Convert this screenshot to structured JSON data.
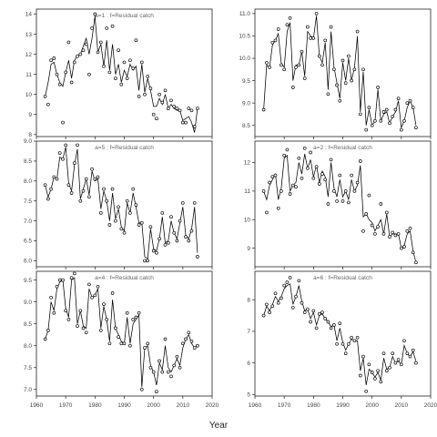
{
  "chart_data": {
    "type": "scatter",
    "shared_xlabel": "Year",
    "panels": [
      {
        "title": "a=1 : f=Residual catch",
        "xlim": [
          1960,
          2020
        ],
        "xticks": [
          1960,
          1970,
          1980,
          1990,
          2000,
          2010,
          2020
        ],
        "ylim": [
          7.9,
          14.25
        ],
        "yticks": [
          8,
          9,
          10,
          11,
          12,
          13,
          14
        ],
        "x": [
          1963,
          1964,
          1965,
          1966,
          1967,
          1968,
          1969,
          1970,
          1971,
          1972,
          1973,
          1974,
          1975,
          1976,
          1977,
          1978,
          1979,
          1980,
          1981,
          1982,
          1983,
          1984,
          1985,
          1986,
          1987,
          1988,
          1989,
          1990,
          1991,
          1992,
          1993,
          1994,
          1995,
          1996,
          1997,
          1998,
          1999,
          2000,
          2001,
          2002,
          2003,
          2004,
          2005,
          2006,
          2007,
          2008,
          2009,
          2010,
          2011,
          2012,
          2013,
          2014,
          2015
        ],
        "observed": [
          9.9,
          9.5,
          11.7,
          11.8,
          11.0,
          10.5,
          8.6,
          11.1,
          12.6,
          10.6,
          11.6,
          11.9,
          12.0,
          12.2,
          12.5,
          11.0,
          13.3,
          14.0,
          12.1,
          12.6,
          11.4,
          13.3,
          11.1,
          13.4,
          10.8,
          12.2,
          10.5,
          11.6,
          10.8,
          11.7,
          11.3,
          12.7,
          9.9,
          11.6,
          10.0,
          10.9,
          10.3,
          9.0,
          8.8,
          10.0,
          9.6,
          10.2,
          9.3,
          9.7,
          9.4,
          9.3,
          9.2,
          8.6,
          8.6,
          9.3,
          9.2,
          8.4,
          9.3
        ],
        "fitted": [
          9.9,
          10.6,
          11.5,
          11.6,
          11.0,
          10.6,
          10.4,
          11.1,
          11.7,
          10.8,
          11.7,
          11.9,
          12.0,
          12.4,
          12.8,
          12.0,
          12.8,
          13.9,
          12.1,
          12.5,
          11.4,
          12.7,
          11.2,
          12.5,
          11.0,
          11.5,
          10.6,
          11.2,
          10.9,
          11.5,
          11.2,
          11.4,
          10.2,
          11.5,
          10.1,
          10.8,
          10.2,
          9.4,
          9.4,
          9.8,
          9.5,
          10.0,
          9.3,
          9.5,
          9.3,
          9.2,
          9.2,
          8.7,
          8.8,
          8.9,
          8.6,
          8.1,
          9.3
        ]
      },
      {
        "title": "a=2 : f=Residual catch",
        "xlim": [
          1960,
          2020
        ],
        "xticks": [
          1960,
          1970,
          1980,
          1990,
          2000,
          2010,
          2020
        ],
        "ylim": [
          8.35,
          12.75
        ],
        "yticks": [
          9,
          10,
          11,
          12
        ],
        "x": [
          1963,
          1964,
          1965,
          1966,
          1967,
          1968,
          1969,
          1970,
          1971,
          1972,
          1973,
          1974,
          1975,
          1976,
          1977,
          1978,
          1979,
          1980,
          1981,
          1982,
          1983,
          1984,
          1985,
          1986,
          1987,
          1988,
          1989,
          1990,
          1991,
          1992,
          1993,
          1994,
          1995,
          1996,
          1997,
          1998,
          1999,
          2000,
          2001,
          2002,
          2003,
          2004,
          2005,
          2006,
          2007,
          2008,
          2009,
          2010,
          2011,
          2012,
          2013,
          2014,
          2015
        ],
        "observed": [
          11.0,
          10.25,
          11.3,
          11.5,
          11.55,
          10.4,
          11.0,
          12.25,
          12.45,
          10.9,
          11.2,
          11.15,
          12.15,
          11.45,
          12.5,
          11.8,
          12.35,
          11.45,
          11.85,
          11.25,
          11.6,
          11.4,
          10.55,
          12.1,
          11.0,
          10.65,
          11.55,
          10.65,
          11.0,
          10.6,
          11.55,
          11.0,
          11.3,
          12.05,
          9.6,
          10.2,
          10.85,
          9.8,
          9.5,
          9.75,
          10.55,
          9.5,
          10.25,
          9.4,
          9.55,
          9.45,
          9.5,
          9.0,
          9.05,
          9.6,
          9.7,
          8.85,
          8.5
        ],
        "fitted": [
          11.0,
          10.7,
          11.2,
          11.4,
          11.6,
          10.7,
          11.1,
          12.15,
          12.25,
          11.0,
          11.2,
          11.3,
          12.0,
          11.6,
          12.3,
          11.8,
          12.1,
          11.5,
          11.9,
          11.3,
          11.7,
          11.5,
          10.8,
          12.0,
          11.1,
          10.8,
          11.4,
          10.8,
          11.0,
          10.7,
          11.4,
          11.0,
          11.2,
          11.9,
          10.1,
          10.2,
          10.0,
          9.9,
          9.6,
          9.8,
          10.0,
          9.5,
          10.2,
          9.4,
          9.5,
          9.5,
          9.5,
          9.0,
          9.1,
          9.5,
          9.6,
          8.9,
          8.5
        ]
      },
      {
        "title": "",
        "xlim": [
          1960,
          2020
        ],
        "xticks": [
          1960,
          1970,
          1980,
          1990,
          2000,
          2010,
          2020
        ],
        "ylim": [
          8.25,
          11.1
        ],
        "yticks": [
          8.5,
          9.0,
          9.5,
          10.0,
          10.5,
          11.0
        ],
        "x": [
          1963,
          1964,
          1965,
          1966,
          1967,
          1968,
          1969,
          1970,
          1971,
          1972,
          1973,
          1974,
          1975,
          1976,
          1977,
          1978,
          1979,
          1980,
          1981,
          1982,
          1983,
          1984,
          1985,
          1986,
          1987,
          1988,
          1989,
          1990,
          1991,
          1992,
          1993,
          1994,
          1995,
          1996,
          1997,
          1998,
          1999,
          2000,
          2001,
          2002,
          2003,
          2004,
          2005,
          2006,
          2007,
          2008,
          2009,
          2010,
          2011,
          2012,
          2013,
          2014,
          2015
        ],
        "observed": [
          8.85,
          9.9,
          9.8,
          10.35,
          10.4,
          10.65,
          9.85,
          9.75,
          10.75,
          10.9,
          9.35,
          9.8,
          9.85,
          10.15,
          9.55,
          10.7,
          10.45,
          10.45,
          11.0,
          10.05,
          9.85,
          10.4,
          9.2,
          10.7,
          9.75,
          9.4,
          9.05,
          9.95,
          9.45,
          10.05,
          9.5,
          9.75,
          10.6,
          8.75,
          9.75,
          8.4,
          8.9,
          8.5,
          8.6,
          9.35,
          8.6,
          8.8,
          8.85,
          8.55,
          8.7,
          8.85,
          9.1,
          8.4,
          8.6,
          9.0,
          9.05,
          8.9,
          8.45
        ],
        "fitted": [
          8.85,
          9.85,
          9.8,
          10.3,
          10.4,
          10.55,
          9.9,
          9.8,
          10.6,
          10.8,
          9.5,
          9.85,
          9.85,
          10.15,
          9.6,
          10.6,
          10.5,
          10.45,
          10.95,
          10.05,
          9.9,
          10.35,
          9.3,
          10.6,
          9.8,
          9.45,
          9.1,
          9.9,
          9.5,
          10.0,
          9.5,
          9.8,
          10.5,
          8.8,
          9.7,
          8.5,
          8.85,
          8.5,
          8.6,
          9.3,
          8.6,
          8.75,
          8.8,
          8.55,
          8.7,
          8.8,
          9.05,
          8.45,
          8.6,
          8.9,
          9.05,
          8.9,
          8.5
        ]
      },
      {
        "title": "a=4 : f=Residual catch",
        "xlim": [
          1960,
          2020
        ],
        "xticks": [
          1960,
          1970,
          1980,
          1990,
          2000,
          2010,
          2020
        ],
        "ylim": [
          6.85,
          9.7
        ],
        "yticks": [
          7.0,
          7.5,
          8.0,
          8.5,
          9.0,
          9.5
        ],
        "x": [
          1963,
          1964,
          1965,
          1966,
          1967,
          1968,
          1969,
          1970,
          1971,
          1972,
          1973,
          1974,
          1975,
          1976,
          1977,
          1978,
          1979,
          1980,
          1981,
          1982,
          1983,
          1984,
          1985,
          1986,
          1987,
          1988,
          1989,
          1990,
          1991,
          1992,
          1993,
          1994,
          1995,
          1996,
          1997,
          1998,
          1999,
          2000,
          2001,
          2002,
          2003,
          2004,
          2005,
          2006,
          2007,
          2008,
          2009,
          2010,
          2011,
          2012,
          2013,
          2014,
          2015
        ],
        "observed": [
          8.15,
          8.35,
          9.1,
          8.75,
          9.35,
          9.5,
          9.5,
          8.8,
          8.6,
          9.55,
          9.65,
          8.45,
          8.8,
          8.4,
          8.3,
          9.4,
          9.1,
          9.15,
          9.35,
          8.35,
          8.95,
          8.6,
          8.05,
          9.2,
          8.4,
          8.2,
          8.05,
          8.05,
          8.75,
          8.0,
          8.6,
          8.65,
          8.75,
          7.0,
          7.95,
          8.05,
          7.5,
          7.4,
          6.95,
          7.65,
          7.4,
          8.15,
          7.4,
          7.3,
          7.55,
          7.75,
          7.5,
          8.05,
          8.15,
          8.3,
          8.1,
          7.95,
          8.0
        ],
        "fitted": [
          8.15,
          8.35,
          9.0,
          8.8,
          9.3,
          9.45,
          9.5,
          8.85,
          8.65,
          9.5,
          9.55,
          8.5,
          8.8,
          8.45,
          8.4,
          9.3,
          9.1,
          9.15,
          9.3,
          8.4,
          8.9,
          8.6,
          8.1,
          9.05,
          8.4,
          8.25,
          8.1,
          8.05,
          8.65,
          8.05,
          8.5,
          8.6,
          8.7,
          7.05,
          7.95,
          8.0,
          7.55,
          7.4,
          7.1,
          7.6,
          7.45,
          8.0,
          7.5,
          7.4,
          7.55,
          7.7,
          7.55,
          7.95,
          8.15,
          8.25,
          8.05,
          7.95,
          8.0
        ]
      },
      {
        "title": "a=5 : f=Residual catch",
        "xlim": [
          1960,
          2020
        ],
        "xticks": [
          1960,
          1970,
          1980,
          1990,
          2000,
          2010,
          2020
        ],
        "ylim": [
          5.85,
          9.0
        ],
        "yticks": [
          6.0,
          6.5,
          7.0,
          7.5,
          8.0,
          8.5,
          9.0
        ],
        "x": [
          1963,
          1964,
          1965,
          1966,
          1967,
          1968,
          1969,
          1970,
          1971,
          1972,
          1973,
          1974,
          1975,
          1976,
          1977,
          1978,
          1979,
          1980,
          1981,
          1982,
          1983,
          1984,
          1985,
          1986,
          1987,
          1988,
          1989,
          1990,
          1991,
          1992,
          1993,
          1994,
          1995,
          1996,
          1997,
          1998,
          1999,
          2000,
          2001,
          2002,
          2003,
          2004,
          2005,
          2006,
          2007,
          2008,
          2009,
          2010,
          2011,
          2012,
          2013,
          2014,
          2015
        ],
        "observed": [
          7.9,
          7.55,
          7.8,
          8.1,
          8.05,
          8.7,
          8.55,
          8.9,
          7.9,
          7.7,
          8.45,
          8.9,
          7.5,
          7.75,
          8.05,
          7.6,
          8.3,
          8.05,
          8.1,
          7.2,
          7.8,
          7.5,
          6.9,
          7.8,
          7.0,
          7.35,
          6.8,
          6.7,
          7.5,
          7.2,
          7.8,
          7.4,
          6.9,
          6.95,
          6.0,
          6.0,
          6.85,
          6.25,
          6.2,
          6.55,
          7.2,
          6.4,
          6.45,
          7.1,
          6.7,
          6.5,
          7.0,
          7.45,
          6.6,
          6.5,
          6.75,
          7.45,
          6.1
        ],
        "fitted": [
          7.9,
          7.6,
          7.8,
          8.1,
          8.05,
          8.6,
          8.55,
          8.85,
          7.95,
          7.75,
          8.4,
          8.8,
          7.55,
          7.8,
          8.05,
          7.65,
          8.25,
          8.0,
          8.05,
          7.3,
          7.75,
          7.5,
          7.0,
          7.7,
          7.05,
          7.3,
          6.85,
          6.75,
          7.45,
          7.2,
          7.7,
          7.35,
          6.95,
          6.95,
          6.1,
          6.05,
          6.8,
          6.3,
          6.25,
          6.55,
          7.1,
          6.45,
          6.5,
          7.0,
          6.7,
          6.55,
          6.95,
          7.35,
          6.65,
          6.55,
          6.8,
          7.35,
          6.2
        ]
      },
      {
        "title": "a=6 : f=Residual catch",
        "xlim": [
          1960,
          2020
        ],
        "xticks": [
          1960,
          1970,
          1980,
          1990,
          2000,
          2010,
          2020
        ],
        "ylim": [
          4.95,
          8.9
        ],
        "yticks": [
          5,
          6,
          7,
          8
        ],
        "x": [
          1963,
          1964,
          1965,
          1966,
          1967,
          1968,
          1969,
          1970,
          1971,
          1972,
          1973,
          1974,
          1975,
          1976,
          1977,
          1978,
          1979,
          1980,
          1981,
          1982,
          1983,
          1984,
          1985,
          1986,
          1987,
          1988,
          1989,
          1990,
          1991,
          1992,
          1993,
          1994,
          1995,
          1996,
          1997,
          1998,
          1999,
          2000,
          2001,
          2002,
          2003,
          2004,
          2005,
          2006,
          2007,
          2008,
          2009,
          2010,
          2011,
          2012,
          2013,
          2014,
          2015
        ],
        "observed": [
          7.5,
          7.85,
          7.6,
          7.8,
          8.2,
          7.9,
          8.05,
          8.45,
          8.55,
          8.7,
          7.75,
          8.1,
          8.6,
          7.9,
          7.6,
          7.7,
          7.3,
          7.65,
          7.1,
          7.55,
          7.6,
          7.4,
          7.3,
          7.1,
          7.2,
          6.6,
          7.25,
          6.6,
          6.3,
          6.6,
          6.8,
          6.7,
          6.8,
          5.6,
          6.2,
          5.1,
          5.95,
          5.7,
          5.5,
          5.75,
          5.4,
          6.3,
          5.75,
          5.85,
          6.3,
          6.0,
          6.1,
          5.95,
          6.7,
          6.3,
          6.2,
          6.4,
          6.0
        ],
        "fitted": [
          7.5,
          7.8,
          7.65,
          7.85,
          8.1,
          7.95,
          8.1,
          8.35,
          8.45,
          8.5,
          7.85,
          8.1,
          8.45,
          7.95,
          7.65,
          7.7,
          7.4,
          7.6,
          7.2,
          7.5,
          7.55,
          7.4,
          7.3,
          7.15,
          7.2,
          6.7,
          7.1,
          6.65,
          6.4,
          6.6,
          6.75,
          6.7,
          6.7,
          5.75,
          6.15,
          5.3,
          5.8,
          5.7,
          5.55,
          5.7,
          5.45,
          6.15,
          5.8,
          5.85,
          6.2,
          6.0,
          6.05,
          5.95,
          6.55,
          6.3,
          6.2,
          6.35,
          6.05
        ]
      }
    ]
  }
}
